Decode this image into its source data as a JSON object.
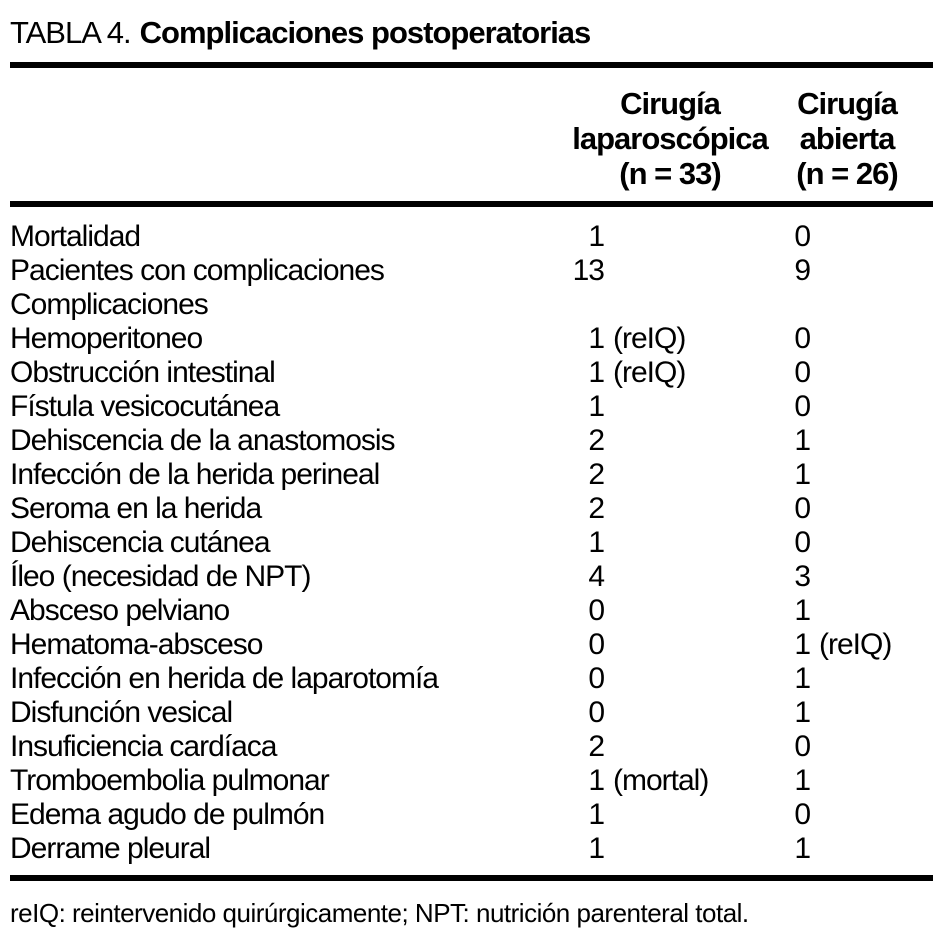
{
  "title": {
    "prefix": "TABLA 4.",
    "text": "Complicaciones postoperatorias"
  },
  "table": {
    "columns": [
      {
        "label": "Cirugía\nlaparoscópica\n(n = 33)"
      },
      {
        "label": "Cirugía\nabierta\n(n = 26)"
      }
    ],
    "rows": [
      {
        "label": "Mortalidad",
        "lap": "1",
        "lap_note": "",
        "open": "0",
        "open_note": ""
      },
      {
        "label": "Pacientes con complicaciones",
        "lap": "13",
        "lap_note": "",
        "open": "9",
        "open_note": ""
      },
      {
        "label": "Complicaciones",
        "lap": "",
        "lap_note": "",
        "open": "",
        "open_note": ""
      },
      {
        "label": "Hemoperitoneo",
        "lap": "1",
        "lap_note": "(reIQ)",
        "open": "0",
        "open_note": ""
      },
      {
        "label": "Obstrucción intestinal",
        "lap": "1",
        "lap_note": "(reIQ)",
        "open": "0",
        "open_note": ""
      },
      {
        "label": "Fístula vesicocutánea",
        "lap": "1",
        "lap_note": "",
        "open": "0",
        "open_note": ""
      },
      {
        "label": "Dehiscencia de la anastomosis",
        "lap": "2",
        "lap_note": "",
        "open": "1",
        "open_note": ""
      },
      {
        "label": "Infección de la herida perineal",
        "lap": "2",
        "lap_note": "",
        "open": "1",
        "open_note": ""
      },
      {
        "label": "Seroma en la herida",
        "lap": "2",
        "lap_note": "",
        "open": "0",
        "open_note": ""
      },
      {
        "label": "Dehiscencia cutánea",
        "lap": "1",
        "lap_note": "",
        "open": "0",
        "open_note": ""
      },
      {
        "label": "Íleo (necesidad de NPT)",
        "lap": "4",
        "lap_note": "",
        "open": "3",
        "open_note": ""
      },
      {
        "label": "Absceso pelviano",
        "lap": "0",
        "lap_note": "",
        "open": "1",
        "open_note": ""
      },
      {
        "label": "Hematoma-absceso",
        "lap": "0",
        "lap_note": "",
        "open": "1",
        "open_note": "(reIQ)"
      },
      {
        "label": "Infección en herida de laparotomía",
        "lap": "0",
        "lap_note": "",
        "open": "1",
        "open_note": ""
      },
      {
        "label": "Disfunción vesical",
        "lap": "0",
        "lap_note": "",
        "open": "1",
        "open_note": ""
      },
      {
        "label": "Insuficiencia cardíaca",
        "lap": "2",
        "lap_note": "",
        "open": "0",
        "open_note": ""
      },
      {
        "label": "Tromboembolia pulmonar",
        "lap": "1",
        "lap_note": "(mortal)",
        "open": "1",
        "open_note": ""
      },
      {
        "label": "Edema agudo de pulmón",
        "lap": "1",
        "lap_note": "",
        "open": "0",
        "open_note": ""
      },
      {
        "label": "Derrame pleural",
        "lap": "1",
        "lap_note": "",
        "open": "1",
        "open_note": ""
      }
    ]
  },
  "footnote": "reIQ: reintervenido quirúrgicamente; NPT: nutrición parenteral total."
}
